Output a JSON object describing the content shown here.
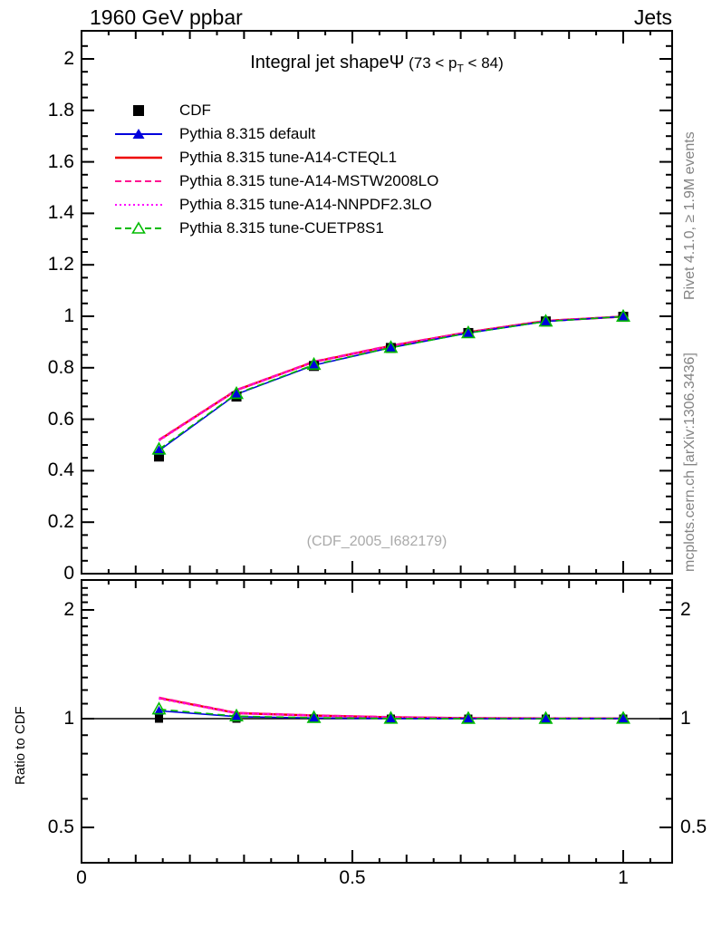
{
  "header": {
    "left": "1960 GeV ppbar",
    "right": "Jets"
  },
  "title": {
    "main": "Integral jet shape",
    "psi": "Ψ",
    "range_pre": " (73 < p",
    "range_sub": "T",
    "range_post": " < 84)"
  },
  "watermark": "(CDF_2005_I682179)",
  "sidebar": {
    "top": "Rivet 4.1.0, ≥ 1.9M events",
    "bottom": "mcplots.cern.ch [arXiv:1306.3436]"
  },
  "ratio_axis_label": "Ratio to CDF",
  "chart_data": {
    "type": "line",
    "x": [
      0.143,
      0.286,
      0.429,
      0.571,
      0.714,
      0.857,
      1.0
    ],
    "series": [
      {
        "name": "CDF",
        "color": "#000000",
        "line": "none",
        "marker": "square-filled",
        "values": [
          0.455,
          0.688,
          0.807,
          0.877,
          0.935,
          0.98,
          0.998
        ],
        "ratio": [
          1.0,
          1.0,
          1.0,
          1.0,
          1.0,
          1.0,
          1.0
        ]
      },
      {
        "name": "Pythia 8.315 default",
        "color": "#0000dd",
        "line": "solid",
        "marker": "triangle-filled",
        "values": [
          0.478,
          0.697,
          0.81,
          0.878,
          0.935,
          0.98,
          0.999
        ],
        "ratio": [
          1.051,
          1.013,
          1.004,
          1.001,
          1.0,
          1.0,
          1.001
        ]
      },
      {
        "name": "Pythia 8.315 tune-A14-CTEQL1",
        "color": "#ee0000",
        "line": "solid",
        "marker": "none",
        "values": [
          0.519,
          0.713,
          0.823,
          0.885,
          0.938,
          0.982,
          0.999
        ],
        "ratio": [
          1.141,
          1.036,
          1.02,
          1.009,
          1.003,
          1.002,
          1.001
        ]
      },
      {
        "name": "Pythia 8.315 tune-A14-MSTW2008LO",
        "color": "#ff1493",
        "line": "dashed",
        "marker": "none",
        "values": [
          0.52,
          0.714,
          0.824,
          0.886,
          0.938,
          0.982,
          0.999
        ],
        "ratio": [
          1.143,
          1.038,
          1.021,
          1.01,
          1.003,
          1.002,
          1.001
        ]
      },
      {
        "name": "Pythia 8.315 tune-A14-NNPDF2.3LO",
        "color": "#ff00ff",
        "line": "dotted",
        "marker": "none",
        "values": [
          0.517,
          0.712,
          0.822,
          0.884,
          0.937,
          0.981,
          0.999
        ],
        "ratio": [
          1.136,
          1.035,
          1.019,
          1.008,
          1.002,
          1.001,
          1.001
        ]
      },
      {
        "name": "Pythia 8.315 tune-CUETP8S1",
        "color": "#00bb00",
        "line": "dashed",
        "marker": "triangle-open",
        "values": [
          0.483,
          0.699,
          0.812,
          0.878,
          0.935,
          0.98,
          0.999
        ],
        "ratio": [
          1.062,
          1.016,
          1.006,
          1.001,
          1.0,
          1.0,
          1.001
        ]
      }
    ],
    "top_axis": {
      "ylim": [
        0,
        2.11
      ],
      "minor_step": 0.05,
      "major_step": 0.2,
      "yticks": {
        "values": [
          0,
          0.2,
          0.4,
          0.6,
          0.8,
          1,
          1.2,
          1.4,
          1.6,
          1.8,
          2
        ],
        "labels": [
          "0",
          "0.2",
          "0.4",
          "0.6",
          "0.8",
          "1",
          "1.2",
          "1.4",
          "1.6",
          "1.8",
          "2"
        ]
      }
    },
    "x_axis": {
      "xlim": [
        0,
        1.09
      ],
      "minor_step": 0.05,
      "mid_step": 0.1,
      "major_step": 0.5,
      "xticks": {
        "values": [
          0,
          0.5,
          1
        ],
        "labels": [
          "0",
          "0.5",
          "1"
        ]
      }
    },
    "ratio_axis": {
      "scale": "log",
      "ylim": [
        0.4,
        2.42
      ],
      "yticks": {
        "values": [
          2,
          1,
          0.5
        ],
        "labels": [
          "2",
          "1",
          "0.5"
        ]
      },
      "minor_ticks": [
        0.4,
        0.6,
        0.7,
        0.8,
        0.9,
        1.1,
        1.2,
        1.3,
        1.4,
        1.5,
        1.6,
        1.7,
        1.8,
        1.9,
        2.1,
        2.2,
        2.3,
        2.4
      ],
      "reference_line": 1.0
    }
  }
}
